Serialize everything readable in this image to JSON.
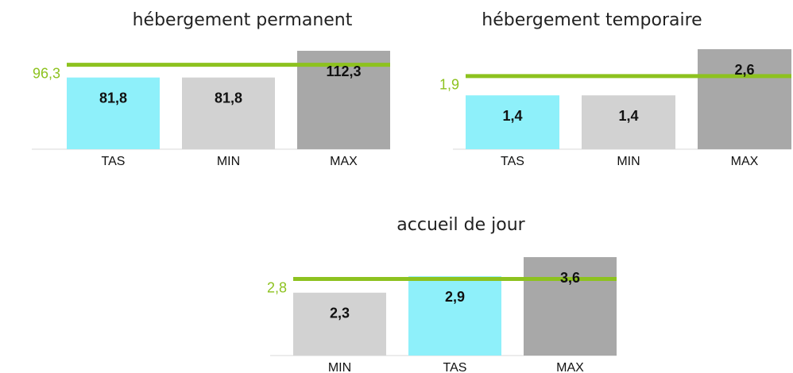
{
  "chart_data": [
    {
      "type": "bar",
      "title": "hébergement permanent",
      "categories": [
        "TAS",
        "MIN",
        "MAX"
      ],
      "values": [
        81.8,
        81.8,
        112.3
      ],
      "value_labels": [
        "81,8",
        "81,8",
        "112,3"
      ],
      "colors": [
        "#8ef0fa",
        "#d2d2d2",
        "#a8a8a8"
      ],
      "reference_line": {
        "value": 96.3,
        "label": "96,3",
        "color": "#8dc21f"
      }
    },
    {
      "type": "bar",
      "title": "hébergement temporaire",
      "categories": [
        "TAS",
        "MIN",
        "MAX"
      ],
      "values": [
        1.4,
        1.4,
        2.6
      ],
      "value_labels": [
        "1,4",
        "1,4",
        "2,6"
      ],
      "colors": [
        "#8ef0fa",
        "#d2d2d2",
        "#a8a8a8"
      ],
      "reference_line": {
        "value": 1.9,
        "label": "1,9",
        "color": "#8dc21f"
      }
    },
    {
      "type": "bar",
      "title": "accueil de jour",
      "categories": [
        "MIN",
        "TAS",
        "MAX"
      ],
      "values": [
        2.3,
        2.9,
        3.6
      ],
      "value_labels": [
        "2,3",
        "2,9",
        "3,6"
      ],
      "colors": [
        "#d2d2d2",
        "#8ef0fa",
        "#a8a8a8"
      ],
      "reference_line": {
        "value": 2.8,
        "label": "2,8",
        "color": "#8dc21f"
      }
    }
  ]
}
